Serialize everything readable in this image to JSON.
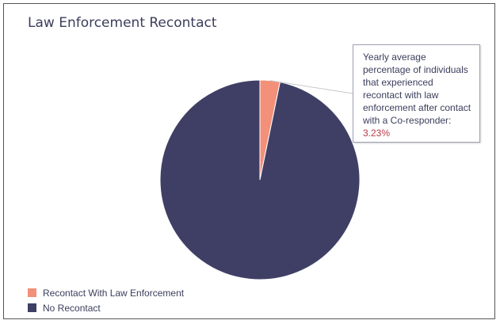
{
  "chart_data": {
    "type": "pie",
    "title": "Law Enforcement Recontact",
    "slices": [
      {
        "label": "Recontact With Law Enforcement",
        "value": 3.23,
        "color": "#f2907a"
      },
      {
        "label": "No Recontact",
        "value": 96.77,
        "color": "#3f3f66"
      }
    ],
    "legend_position": "bottom-left",
    "tooltip": {
      "text": "Yearly average percentage of individuals that experienced recontact with law enforcement after contact with a Co-responder: ",
      "value_text": "3.23%"
    }
  }
}
